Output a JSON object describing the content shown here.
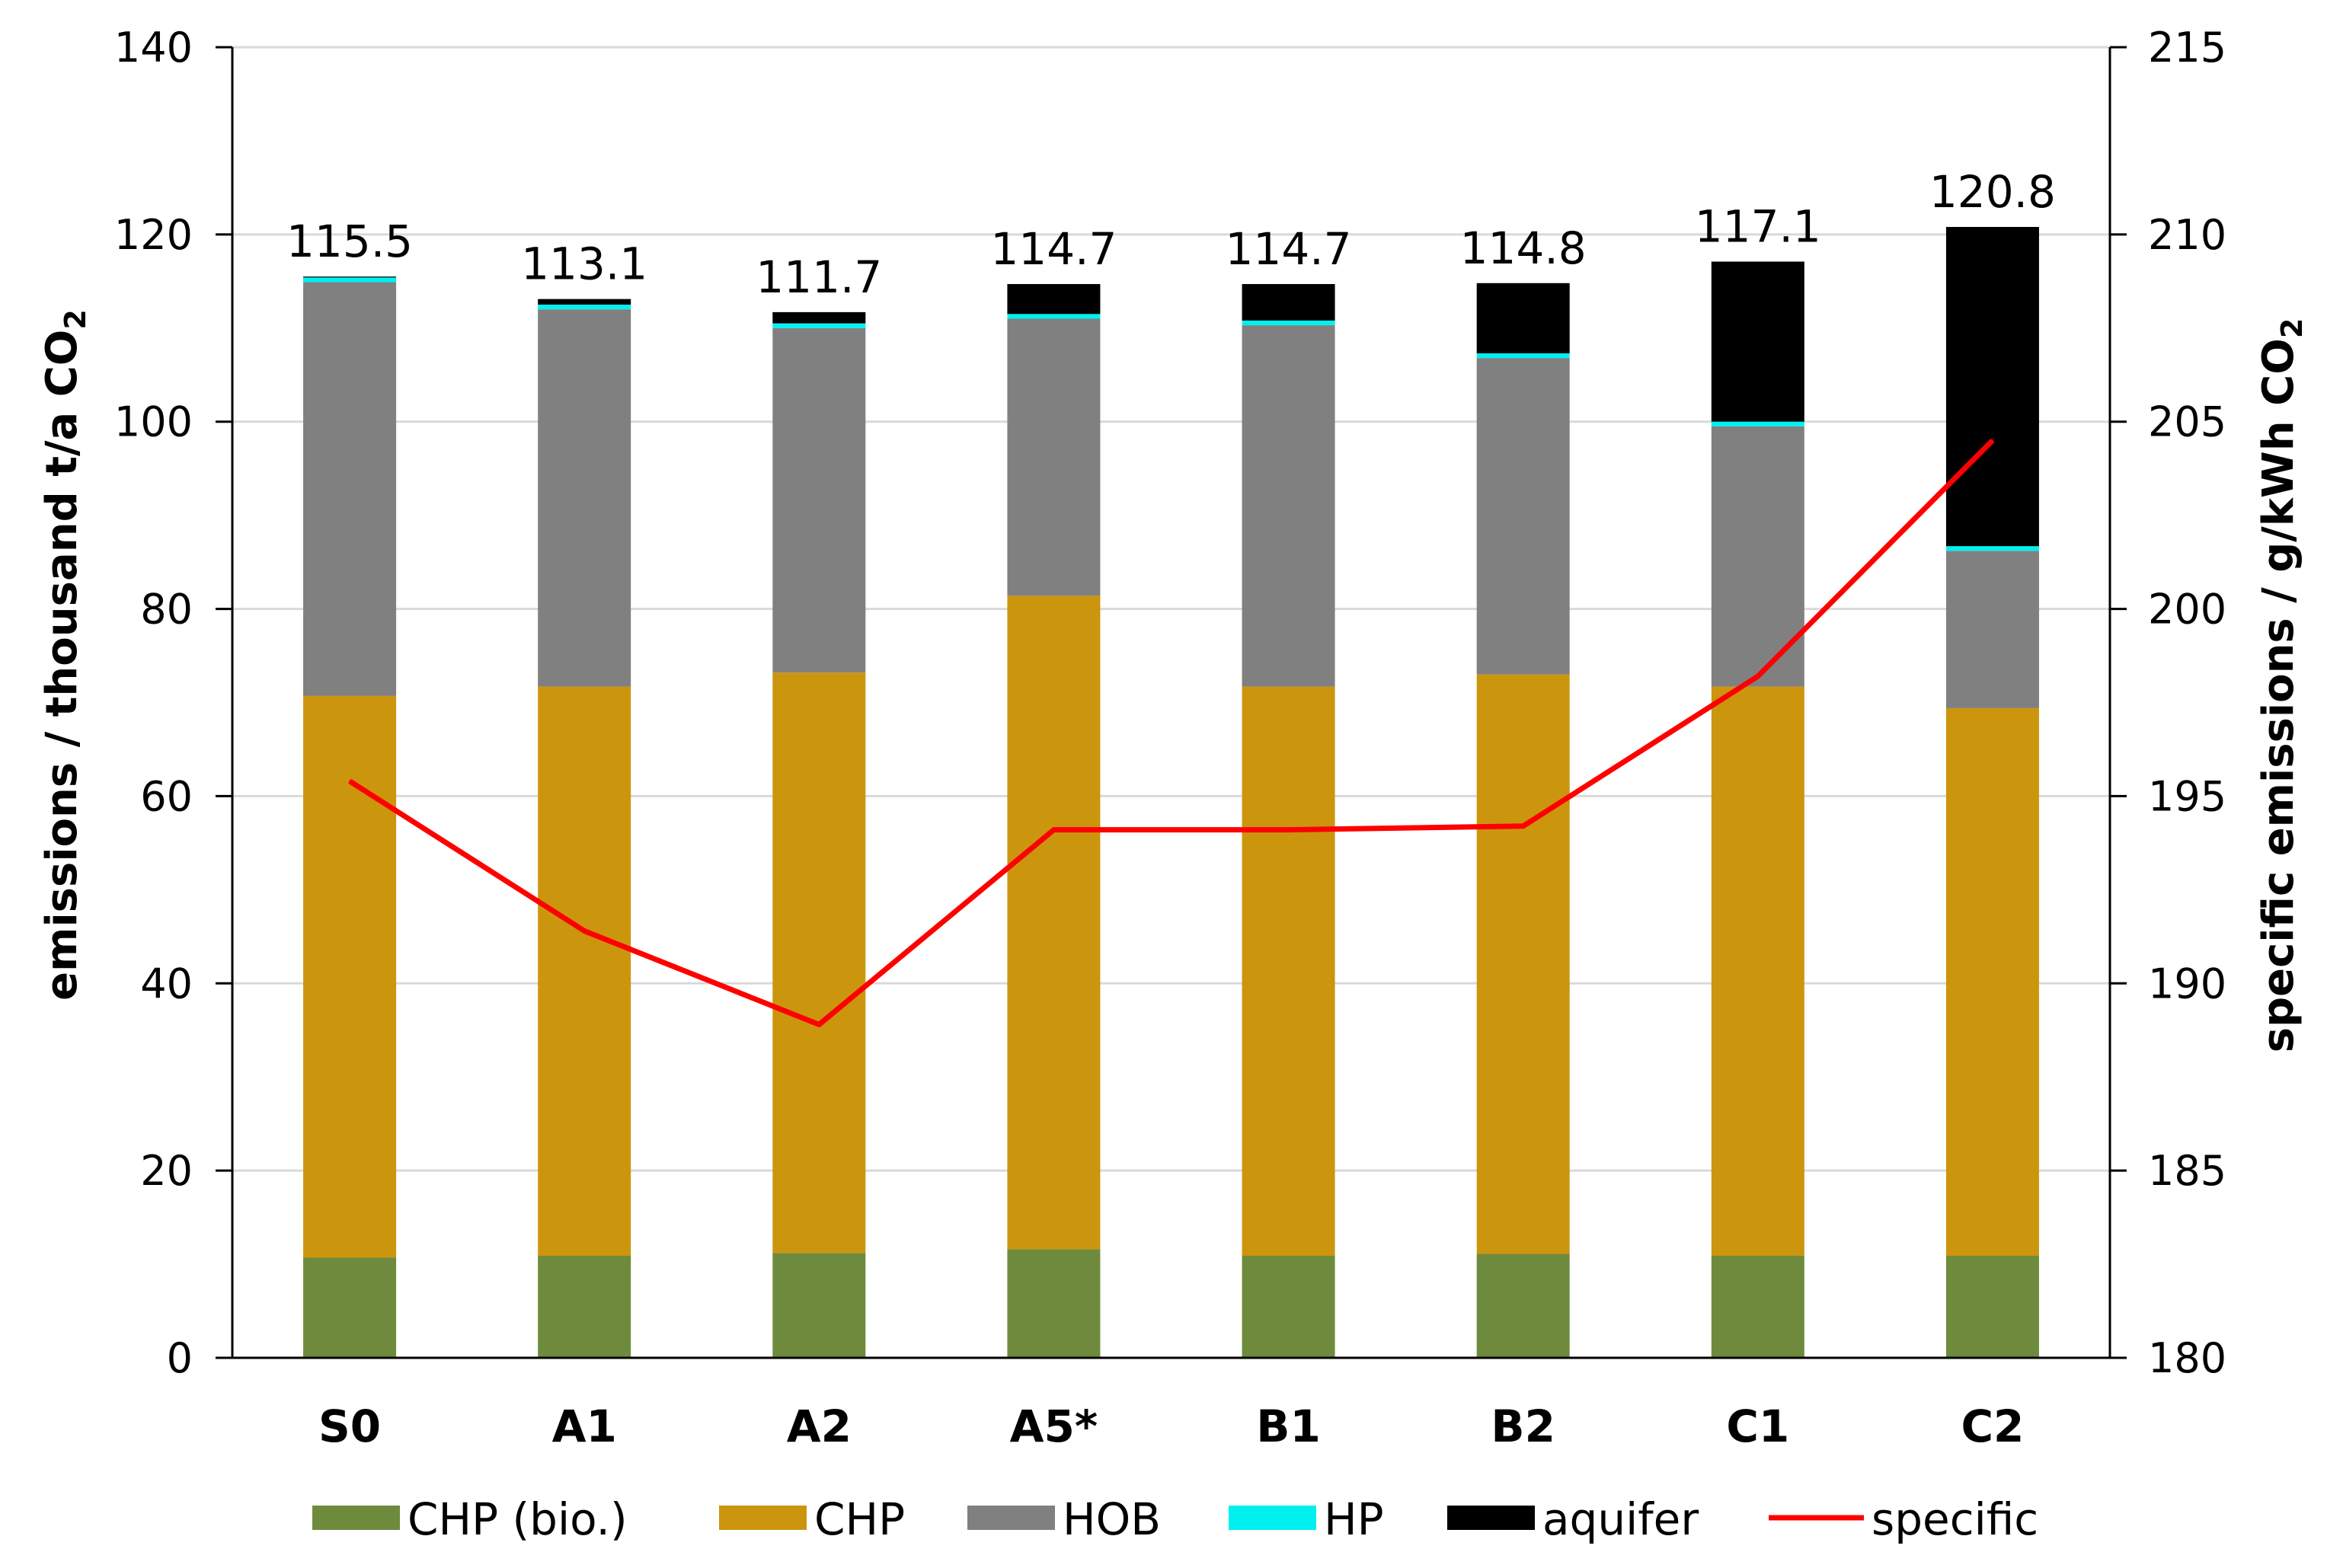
{
  "chart_data": {
    "type": "bar",
    "stacked": true,
    "categories": [
      "S0",
      "A1",
      "A2",
      "A5*",
      "B1",
      "B2",
      "C1",
      "C2"
    ],
    "series": [
      {
        "name": "CHP (bio.)",
        "color": "#6e8b3d",
        "values": [
          10.7,
          10.9,
          11.2,
          11.6,
          10.9,
          11.1,
          10.9,
          10.9
        ]
      },
      {
        "name": "CHP",
        "color": "#cc950e",
        "values": [
          60.0,
          60.8,
          62.0,
          69.8,
          60.8,
          61.9,
          60.8,
          58.5
        ]
      },
      {
        "name": "HOB",
        "color": "#808080",
        "values": [
          44.2,
          40.3,
          36.8,
          29.6,
          38.6,
          33.8,
          27.8,
          16.8
        ]
      },
      {
        "name": "HP",
        "color": "#00f0f0",
        "values": [
          0.5,
          0.5,
          0.5,
          0.5,
          0.5,
          0.5,
          0.5,
          0.5
        ]
      },
      {
        "name": "aquifer",
        "color": "#000000",
        "values": [
          0.1,
          0.6,
          1.2,
          3.2,
          3.9,
          7.5,
          17.1,
          34.1
        ]
      }
    ],
    "totals": [
      "115.5",
      "113.1",
      "111.7",
      "114.7",
      "114.7",
      "114.8",
      "117.1",
      "120.8"
    ],
    "line": {
      "name": "specific",
      "color": "#ff0000",
      "axis": "right",
      "values": [
        195.4,
        191.4,
        188.9,
        194.1,
        194.1,
        194.2,
        198.2,
        204.5
      ]
    },
    "ylabel": "emissions / thousand t/a CO",
    "ylabel_sub": "2",
    "y2label": "specific emissions / g/kWh CO",
    "y2label_sub": "2",
    "ylim": [
      0,
      140
    ],
    "yticks": [
      0,
      20,
      40,
      60,
      80,
      100,
      120,
      140
    ],
    "y2lim": [
      180,
      215
    ],
    "y2ticks": [
      180,
      185,
      190,
      195,
      200,
      205,
      210,
      215
    ],
    "grid": true,
    "legend_position": "bottom"
  }
}
